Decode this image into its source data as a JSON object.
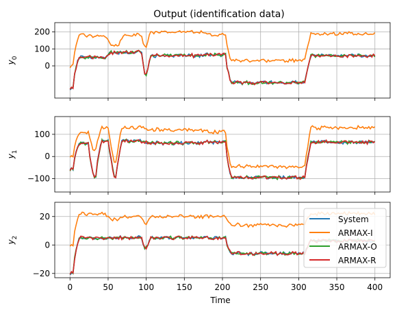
{
  "colors": {
    "System": "#1f77b4",
    "ARMAX-I": "#ff7f0e",
    "ARMAX-O": "#2ca02c",
    "ARMAX-R": "#d62728"
  },
  "chart_data": [
    {
      "type": "line",
      "title": "Output (identification data)",
      "ylabel": "y_0",
      "xlabel": "",
      "xlim": [
        -20,
        420
      ],
      "ylim": [
        -190,
        255
      ],
      "grid": true,
      "xticks": [
        0,
        50,
        100,
        150,
        200,
        250,
        300,
        350,
        400
      ],
      "xtick_labels_visible": false,
      "yticks": [
        0,
        100,
        200
      ],
      "ytick_labels": [
        "0",
        "100",
        "200"
      ],
      "x_range": [
        0,
        400
      ],
      "segments": [
        [
          0,
          5
        ],
        [
          5,
          48
        ],
        [
          48,
          65
        ],
        [
          65,
          95
        ],
        [
          95,
          100
        ],
        [
          100,
          175
        ],
        [
          175,
          205
        ],
        [
          205,
          310
        ],
        [
          310,
          400
        ]
      ],
      "series": [
        {
          "name": "System",
          "levels": [
            -130,
            50,
            80,
            80,
            -100,
            60,
            65,
            -100,
            60
          ]
        },
        {
          "name": "ARMAX-I",
          "levels": [
            0,
            180,
            120,
            180,
            80,
            200,
            185,
            30,
            190
          ]
        },
        {
          "name": "ARMAX-O",
          "levels": [
            -130,
            50,
            80,
            80,
            -100,
            60,
            65,
            -100,
            60
          ]
        },
        {
          "name": "ARMAX-R",
          "levels": [
            -130,
            50,
            80,
            80,
            -100,
            60,
            65,
            -100,
            60
          ]
        }
      ]
    },
    {
      "type": "line",
      "title": "",
      "ylabel": "y_1",
      "xlabel": "",
      "xlim": [
        -20,
        420
      ],
      "ylim": [
        -160,
        180
      ],
      "grid": true,
      "xticks": [
        0,
        50,
        100,
        150,
        200,
        250,
        300,
        350,
        400
      ],
      "xtick_labels_visible": false,
      "yticks": [
        -100,
        0,
        100
      ],
      "ytick_labels": [
        "−100",
        "0",
        "100"
      ],
      "x_range": [
        0,
        400
      ],
      "segments": [
        [
          0,
          5
        ],
        [
          5,
          25
        ],
        [
          25,
          35
        ],
        [
          35,
          52
        ],
        [
          52,
          62
        ],
        [
          62,
          98
        ],
        [
          98,
          175
        ],
        [
          175,
          205
        ],
        [
          205,
          310
        ],
        [
          310,
          400
        ]
      ],
      "series": [
        {
          "name": "System",
          "levels": [
            -60,
            60,
            -90,
            70,
            -90,
            70,
            60,
            65,
            -95,
            65
          ]
        },
        {
          "name": "ARMAX-I",
          "levels": [
            0,
            110,
            30,
            130,
            -30,
            130,
            120,
            110,
            -45,
            130
          ]
        },
        {
          "name": "ARMAX-O",
          "levels": [
            -60,
            60,
            -90,
            70,
            -90,
            70,
            60,
            65,
            -95,
            65
          ]
        },
        {
          "name": "ARMAX-R",
          "levels": [
            -60,
            60,
            -90,
            70,
            -90,
            70,
            60,
            65,
            -95,
            65
          ]
        }
      ]
    },
    {
      "type": "line",
      "title": "",
      "ylabel": "y_2",
      "xlabel": "Time",
      "xlim": [
        -20,
        420
      ],
      "ylim": [
        -23,
        30
      ],
      "grid": true,
      "xticks": [
        0,
        50,
        100,
        150,
        200,
        250,
        300,
        350,
        400
      ],
      "xtick_labels_visible": true,
      "xtick_labels": [
        "0",
        "50",
        "100",
        "150",
        "200",
        "250",
        "300",
        "350",
        "400"
      ],
      "yticks": [
        -20,
        0,
        20
      ],
      "ytick_labels": [
        "−20",
        "0",
        "20"
      ],
      "x_range": [
        0,
        400
      ],
      "segments": [
        [
          0,
          5
        ],
        [
          5,
          48
        ],
        [
          48,
          65
        ],
        [
          65,
          95
        ],
        [
          95,
          100
        ],
        [
          100,
          175
        ],
        [
          175,
          205
        ],
        [
          205,
          310
        ],
        [
          310,
          400
        ]
      ],
      "series": [
        {
          "name": "System",
          "levels": [
            -20,
            5,
            5,
            5,
            -5,
            5,
            5,
            -6,
            3
          ]
        },
        {
          "name": "ARMAX-I",
          "levels": [
            0,
            22,
            18,
            20,
            12,
            20,
            20,
            14,
            22
          ]
        },
        {
          "name": "ARMAX-O",
          "levels": [
            -20,
            5,
            5,
            5,
            -5,
            5,
            5,
            -6,
            3
          ]
        },
        {
          "name": "ARMAX-R",
          "levels": [
            -20,
            5,
            5,
            5,
            -5,
            5,
            5,
            -6,
            3
          ]
        }
      ],
      "legend": {
        "placement": "lower right",
        "entries": [
          "System",
          "ARMAX-I",
          "ARMAX-O",
          "ARMAX-R"
        ]
      }
    }
  ]
}
